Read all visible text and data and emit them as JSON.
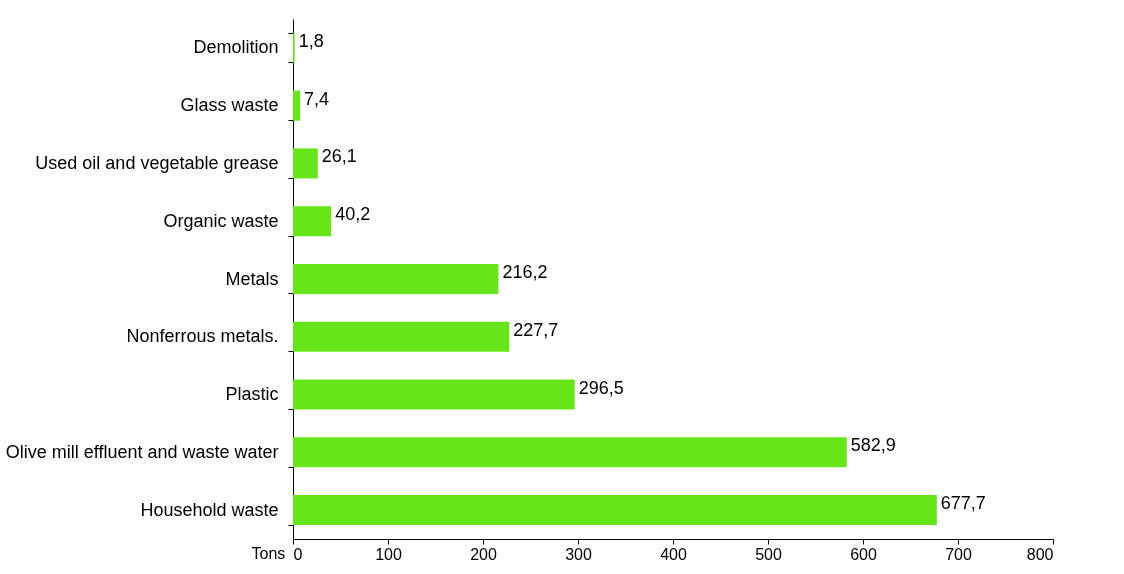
{
  "chart_data": {
    "type": "bar",
    "orientation": "horizontal",
    "xlabel": "Tons",
    "categories": [
      "Demolition",
      "Glass waste",
      "Used oil and vegetable grease",
      "Organic waste",
      "Metals",
      "Nonferrous metals.",
      "Plastic",
      "Olive mill effluent and waste water",
      "Household waste"
    ],
    "values": [
      1.8,
      7.4,
      26.1,
      40.2,
      216.2,
      227.7,
      296.5,
      582.9,
      677.7
    ],
    "value_labels": [
      "1,8",
      "7,4",
      "26,1",
      "40,2",
      "216,2",
      "227,7",
      "296,5",
      "582,9",
      "677,7"
    ],
    "color": "#66e61a",
    "xlim": [
      0,
      800
    ],
    "xticks": [
      0,
      100,
      200,
      300,
      400,
      500,
      600,
      700,
      800
    ],
    "grid": false
  }
}
